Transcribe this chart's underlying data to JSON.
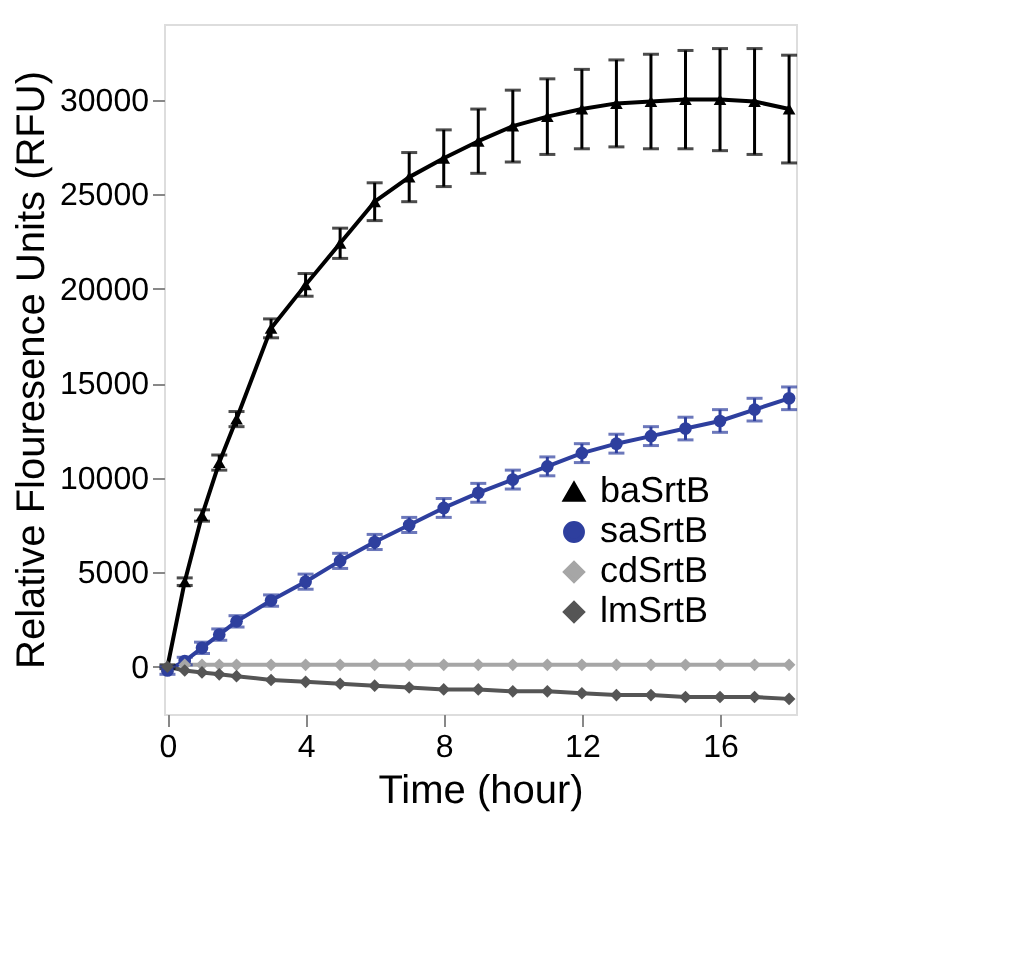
{
  "chart_data": {
    "type": "line",
    "xlabel": "Time (hour)",
    "ylabel": "Relative Flouresence Units (RFU)",
    "x": [
      0,
      0.5,
      1,
      1.5,
      2,
      3,
      4,
      5,
      6,
      7,
      8,
      9,
      10,
      11,
      12,
      13,
      14,
      15,
      16,
      17,
      18
    ],
    "xlim": [
      -0.1,
      18.2
    ],
    "xticks": [
      0,
      4,
      8,
      12,
      16
    ],
    "ylim": [
      -2500,
      34000
    ],
    "yticks": [
      0,
      5000,
      10000,
      15000,
      20000,
      25000,
      30000
    ],
    "grid": false,
    "legend": "bottom right",
    "series": [
      {
        "name": "baSrtB",
        "color": "#000000",
        "marker": "triangle",
        "values": [
          0,
          4500,
          8000,
          10800,
          13100,
          17900,
          20200,
          22400,
          24600,
          25900,
          26900,
          27800,
          28600,
          29100,
          29500,
          29800,
          29900,
          30000,
          30000,
          29900,
          29500
        ],
        "errors": [
          100,
          200,
          300,
          400,
          400,
          500,
          600,
          800,
          1000,
          1300,
          1500,
          1700,
          1900,
          2000,
          2100,
          2300,
          2500,
          2600,
          2700,
          2800,
          2850
        ]
      },
      {
        "name": "saSrtB",
        "color": "#2e3f9e",
        "marker": "circle",
        "values": [
          -200,
          300,
          1000,
          1700,
          2400,
          3500,
          4500,
          5600,
          6600,
          7500,
          8400,
          9200,
          9900,
          10600,
          11300,
          11800,
          12200,
          12600,
          13000,
          13600,
          14200
        ],
        "errors": [
          200,
          200,
          300,
          300,
          300,
          300,
          400,
          400,
          400,
          400,
          500,
          500,
          500,
          500,
          500,
          500,
          500,
          600,
          600,
          600,
          600
        ]
      },
      {
        "name": "cdSrtB",
        "color": "#a6a6a6",
        "marker": "diamond",
        "values": [
          null,
          100,
          100,
          100,
          100,
          100,
          100,
          100,
          100,
          100,
          100,
          100,
          100,
          100,
          100,
          100,
          100,
          100,
          100,
          100,
          100
        ]
      },
      {
        "name": "lmSrtB",
        "color": "#555555",
        "marker": "diamond",
        "values": [
          0,
          -200,
          -300,
          -400,
          -500,
          -700,
          -800,
          -900,
          -1000,
          -1100,
          -1200,
          -1200,
          -1300,
          -1300,
          -1400,
          -1500,
          -1500,
          -1600,
          -1600,
          -1600,
          -1700
        ]
      }
    ]
  }
}
